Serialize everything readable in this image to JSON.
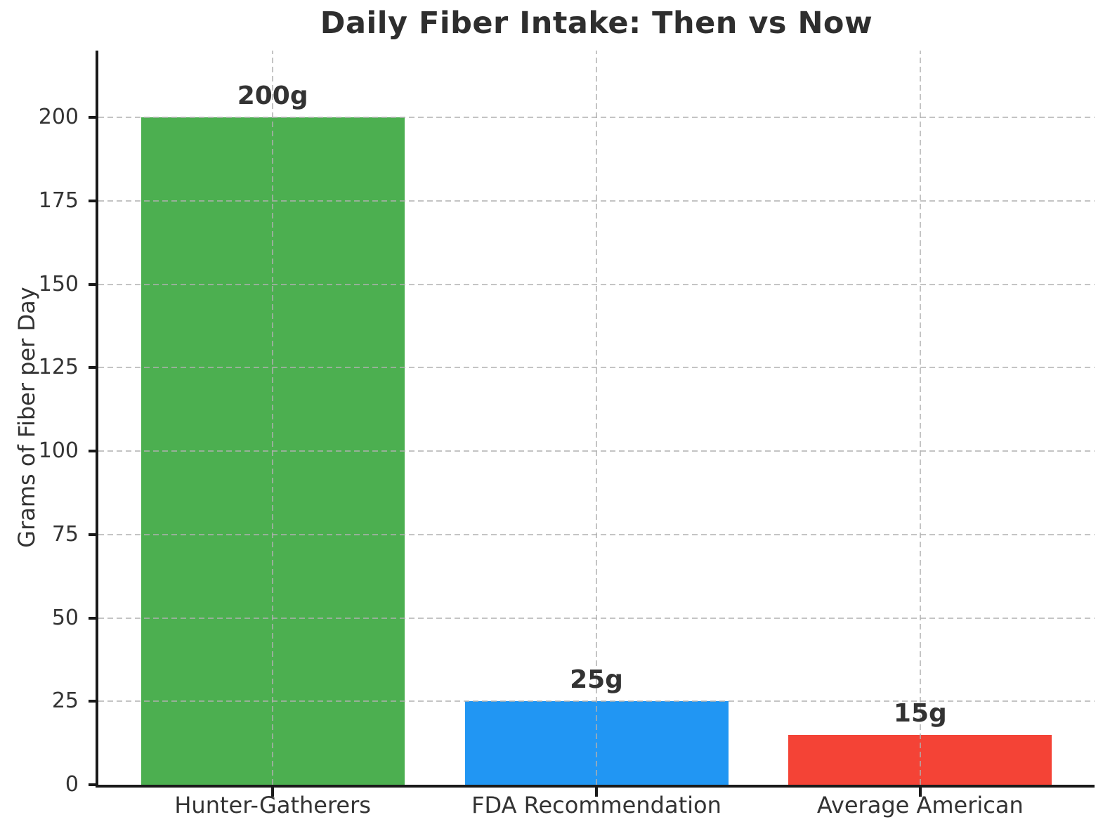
{
  "chart_data": {
    "type": "bar",
    "title": "Daily Fiber Intake: Then vs Now",
    "ylabel": "Grams of Fiber per Day",
    "xlabel": "",
    "categories": [
      "Hunter-Gatherers",
      "FDA Recommendation",
      "Average American"
    ],
    "values": [
      200,
      25,
      15
    ],
    "bar_labels": [
      "200g",
      "25g",
      "15g"
    ],
    "bar_colors": [
      "#4caf50",
      "#2196f3",
      "#f44336"
    ],
    "ylim": [
      0,
      220
    ],
    "yticks": [
      0,
      25,
      50,
      75,
      100,
      125,
      150,
      175,
      200
    ],
    "grid": {
      "style": "dashed",
      "color": "#b0b0b0",
      "horizontal_at_yticks": true,
      "vertical_at_bar_centers": true,
      "drawn_above_bars": true
    },
    "legend": null,
    "spines": [
      "left",
      "bottom"
    ],
    "text_color": "#333333",
    "spine_color": "#1a1a1a",
    "background": "#ffffff"
  }
}
